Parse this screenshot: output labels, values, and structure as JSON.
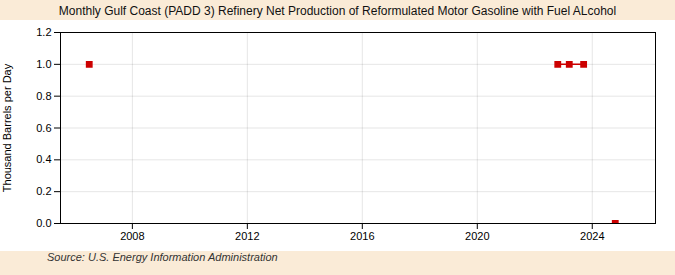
{
  "chart_data": {
    "type": "line",
    "title": "Monthly Gulf Coast (PADD 3) Refinery Net Production of Reformulated Motor Gasoline with Fuel ALcohol",
    "ylabel": "Thousand Barrels per Day",
    "annotation": "Source: U.S. Energy Information Administration",
    "x": [
      2006.5,
      null,
      2022.8,
      2023.2,
      2023.7,
      null,
      2024.8
    ],
    "values": [
      1.0,
      null,
      1.0,
      1.0,
      1.0,
      null,
      0.0
    ],
    "color": "#cc0000",
    "marker": "square",
    "line_style": "solid",
    "xlim": [
      2005.5,
      2026.2
    ],
    "xticks": [
      2008,
      2012,
      2016,
      2020,
      2024
    ],
    "ylim": [
      0.0,
      1.2
    ],
    "yticks": [
      {
        "value": 0.0,
        "label": "0.0"
      },
      0.2,
      0.4,
      0.6,
      0.8,
      {
        "value": 1.0,
        "label": "1.0"
      },
      1.2
    ],
    "grid": true
  }
}
